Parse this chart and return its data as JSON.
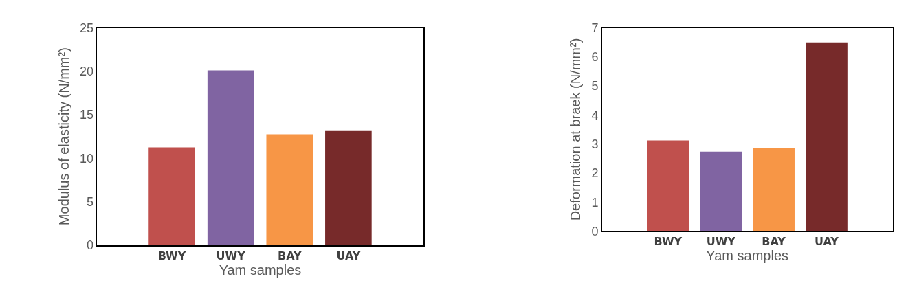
{
  "chart_data": [
    {
      "type": "bar",
      "categories": [
        "BWY",
        "UWY",
        "BAY",
        "UAY"
      ],
      "values": [
        11.25,
        20.1,
        12.75,
        13.2
      ],
      "colors": [
        "#c0504d",
        "#8064a2",
        "#f79646",
        "#772a2a"
      ],
      "xlabel": "Yam samples",
      "ylabel": "Modulus of elasticity (N/mm²)",
      "ylim": [
        0,
        25
      ],
      "yticks": [
        0,
        5,
        10,
        15,
        20,
        25
      ]
    },
    {
      "type": "bar",
      "categories": [
        "BWY",
        "UWY",
        "BAY",
        "UAY"
      ],
      "values": [
        3.12,
        2.74,
        2.87,
        6.5
      ],
      "colors": [
        "#c0504d",
        "#8064a2",
        "#f79646",
        "#772a2a"
      ],
      "xlabel": "Yam samples",
      "ylabel": "Deformation at braek (N/mm²)",
      "ylim": [
        0,
        7
      ],
      "yticks": [
        0,
        1,
        2,
        3,
        4,
        5,
        6,
        7
      ]
    }
  ]
}
